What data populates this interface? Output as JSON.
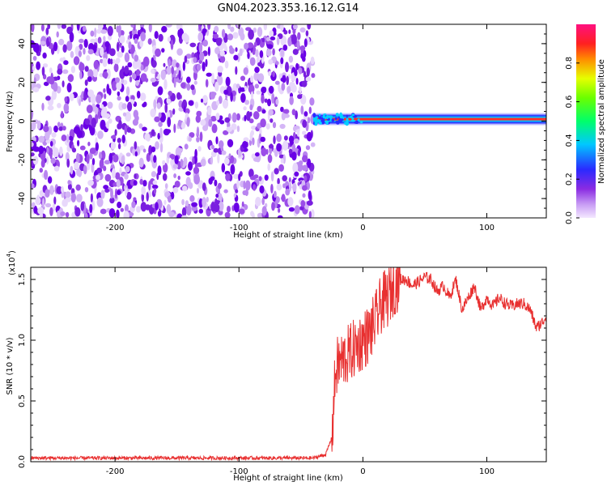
{
  "title": "GN04.2023.353.16.12.G14",
  "colors": {
    "snr_line": "#e83030"
  },
  "chart_data": [
    {
      "type": "heatmap",
      "xlabel": "Height of straight line (km)",
      "ylabel": "Frequency (Hz)",
      "xlim": [
        -268,
        148
      ],
      "ylim": [
        -50,
        50
      ],
      "xticks": [
        -200,
        -100,
        0,
        100
      ],
      "yticks": [
        -40,
        -20,
        0,
        20,
        40
      ],
      "colorbar": {
        "label": "Normalized spectral amplitude",
        "range": [
          0,
          1
        ],
        "ticks": [
          "0.0",
          "0.2",
          "0.4",
          "0.6",
          "0.8"
        ],
        "colormap": "rainbow (white-purple-blue-cyan-green-yellow-red-magenta)"
      },
      "regions": [
        {
          "x": [
            -268,
            -40
          ],
          "description_value": "broadband noise",
          "amplitude": 0.1
        },
        {
          "x": [
            -40,
            148
          ],
          "center_frequency_hz": 1,
          "amplitude": 0.9
        }
      ]
    },
    {
      "type": "line",
      "xlabel": "Height of straight line (km)",
      "ylabel": "SNR (10 * v/v)",
      "scale_label": "(x10",
      "scale_exp": "4",
      "scale_close": ")",
      "xlim": [
        -268,
        148
      ],
      "ylim": [
        0,
        1.6
      ],
      "xticks": [
        -200,
        -100,
        0,
        100
      ],
      "yticks": [
        "0.0",
        "0.5",
        "1.0",
        "1.5"
      ],
      "series": [
        {
          "x": [
            -268,
            -200,
            -100,
            -40,
            -30,
            -25,
            -22,
            -20,
            -15,
            -10,
            -5,
            0,
            5,
            10,
            15,
            20,
            25,
            30,
            35,
            40,
            45,
            50,
            55,
            60,
            65,
            70,
            75,
            80,
            85,
            90,
            95,
            100,
            105,
            110,
            115,
            120,
            125,
            130,
            135,
            140,
            145,
            148
          ],
          "y": [
            0.03,
            0.03,
            0.03,
            0.03,
            0.06,
            0.2,
            0.75,
            0.8,
            0.85,
            0.9,
            0.95,
            1.0,
            1.05,
            1.15,
            1.3,
            1.35,
            1.45,
            1.5,
            1.5,
            1.45,
            1.48,
            1.52,
            1.5,
            1.4,
            1.45,
            1.35,
            1.5,
            1.25,
            1.35,
            1.45,
            1.25,
            1.35,
            1.28,
            1.35,
            1.3,
            1.28,
            1.3,
            1.3,
            1.25,
            1.1,
            1.15,
            1.2
          ]
        }
      ]
    }
  ]
}
